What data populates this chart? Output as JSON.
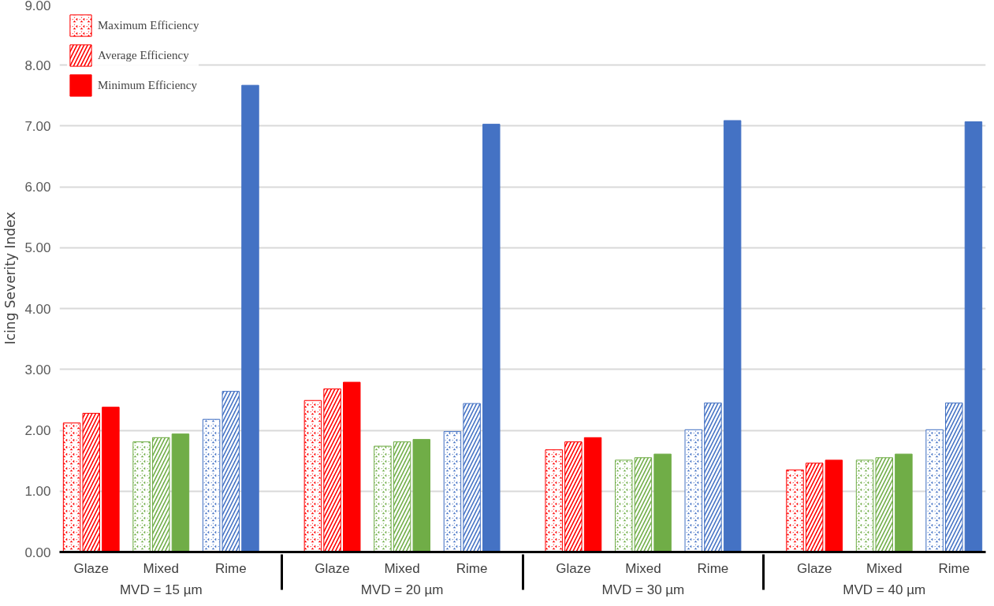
{
  "chart_data": {
    "type": "bar",
    "ylabel": "Icing Severity Index",
    "categories": [
      "Glaze",
      "Mixed",
      "Rime",
      "Glaze",
      "Mixed",
      "Rime",
      "Glaze",
      "Mixed",
      "Rime",
      "Glaze",
      "Mixed",
      "Rime"
    ],
    "annotations": [
      "MVD = 15 µm",
      "MVD = 20 µm",
      "MVD = 30 µm",
      "MVD = 40 µm"
    ],
    "series": [
      {
        "name": "Maximum Efficiency",
        "colors": [
          "#ff0000",
          "#70ad47",
          "#4472c4",
          "#ff0000",
          "#70ad47",
          "#4472c4",
          "#ff0000",
          "#70ad47",
          "#4472c4",
          "#ff0000",
          "#70ad47",
          "#4472c4"
        ],
        "values": [
          2.12,
          1.81,
          2.18,
          2.49,
          1.74,
          1.98,
          1.68,
          1.51,
          2.01,
          1.35,
          1.51,
          2.01
        ]
      },
      {
        "name": "Average Efficiency",
        "colors": [
          "#ff0000",
          "#70ad47",
          "#4472c4",
          "#ff0000",
          "#70ad47",
          "#4472c4",
          "#ff0000",
          "#70ad47",
          "#4472c4",
          "#ff0000",
          "#70ad47",
          "#4472c4"
        ],
        "values": [
          2.28,
          1.88,
          2.64,
          2.68,
          1.81,
          2.44,
          1.81,
          1.55,
          2.45,
          1.46,
          1.55,
          2.45
        ]
      },
      {
        "name": "Minimum Efficiency",
        "colors": [
          "#ff0000",
          "#70ad47",
          "#4472c4",
          "#ff0000",
          "#70ad47",
          "#4472c4",
          "#ff0000",
          "#70ad47",
          "#4472c4",
          "#ff0000",
          "#70ad47",
          "#4472c4"
        ],
        "values": [
          2.38,
          1.94,
          7.67,
          2.79,
          1.85,
          7.03,
          1.88,
          1.61,
          7.09,
          1.51,
          1.61,
          7.07
        ]
      }
    ],
    "ylim": [
      0,
      9
    ],
    "yticks": [
      {
        "value": 0,
        "label": "0.00"
      },
      {
        "value": 1,
        "label": "1.00"
      },
      {
        "value": 2,
        "label": "2.00"
      },
      {
        "value": 3,
        "label": "3.00"
      },
      {
        "value": 4,
        "label": "4.00"
      },
      {
        "value": 5,
        "label": "5.00"
      },
      {
        "value": 6,
        "label": "6.00"
      },
      {
        "value": 7,
        "label": "7.00"
      },
      {
        "value": 8,
        "label": "8.00"
      },
      {
        "value": 9,
        "label": "9.00"
      }
    ],
    "grid": "y",
    "legend": "top left"
  }
}
